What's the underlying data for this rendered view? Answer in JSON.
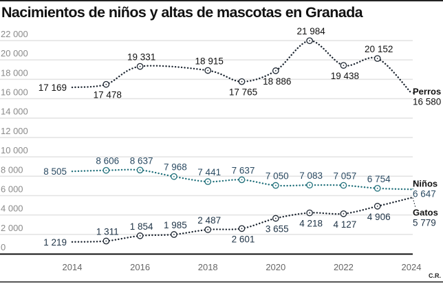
{
  "chart_data": {
    "type": "line",
    "title": "Nacimientos de niños y altas de mascotas en Granada",
    "xlabel": "",
    "ylabel": "",
    "x": [
      2014,
      2015,
      2016,
      2017,
      2018,
      2019,
      2020,
      2021,
      2022,
      2023,
      2024
    ],
    "x_ticks": [
      "2014",
      "2016",
      "2018",
      "2020",
      "2022",
      "2024"
    ],
    "y_ticks": [
      "0",
      "2 000",
      "4 000",
      "6 000",
      "8 000",
      "10 000",
      "12 000",
      "14 000",
      "16 000",
      "18 000",
      "20 000",
      "22 000"
    ],
    "ylim": [
      0,
      22000
    ],
    "grid": true,
    "series": [
      {
        "name": "Perros",
        "color": "#1c2530",
        "label_color": "#111111",
        "values": [
          17169,
          17478,
          19331,
          null,
          18915,
          17765,
          18886,
          21984,
          19438,
          20152,
          16580
        ],
        "labels": [
          "17 169",
          "17 478",
          "19 331",
          "",
          "18 915",
          "17 765",
          "18 886",
          "21 984",
          "19 438",
          "20 152",
          "16 580"
        ],
        "label_pos": [
          "left",
          "below",
          "above",
          "",
          "above",
          "below",
          "below",
          "above",
          "below",
          "above",
          "end"
        ]
      },
      {
        "name": "Niños",
        "color": "#1f6f7a",
        "label_color": "#2a4a62",
        "values": [
          8505,
          8606,
          8637,
          7968,
          7441,
          7637,
          7050,
          7083,
          7057,
          6754,
          6647
        ],
        "labels": [
          "8 505",
          "8 606",
          "8 637",
          "7 968",
          "7 441",
          "7 637",
          "7 050",
          "7 083",
          "7 057",
          "6 754",
          "6 647"
        ],
        "label_pos": [
          "left",
          "above",
          "above",
          "above",
          "above",
          "above",
          "above",
          "above",
          "above",
          "above",
          "end"
        ]
      },
      {
        "name": "Gatos",
        "color": "#1c2530",
        "label_color": "#1e3346",
        "values": [
          1219,
          1311,
          1854,
          1985,
          2487,
          2601,
          3655,
          4218,
          4127,
          4906,
          5779
        ],
        "labels": [
          "1 219",
          "1 311",
          "1 854",
          "1 985",
          "2 487",
          "2 601",
          "3 655",
          "4 218",
          "4 127",
          "4 906",
          "5 779"
        ],
        "label_pos": [
          "left",
          "above",
          "above",
          "above",
          "above",
          "below",
          "below",
          "below",
          "below",
          "below",
          "end"
        ]
      }
    ],
    "credit": "C.R."
  }
}
